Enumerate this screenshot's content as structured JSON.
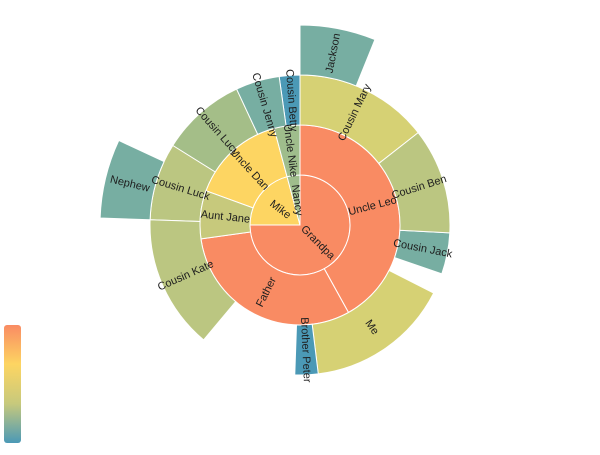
{
  "chart_data": {
    "type": "sunburst",
    "title": "",
    "colors": {
      "Grandpa": "#f98b63",
      "Mike": "#fdd562",
      "Nancy": "#9fbd8c",
      "Uncle Leo": "#f98b63",
      "Father": "#f98b63",
      "Uncle Dan": "#fdd562",
      "Aunt Jane": "#c7c97c",
      "Uncle Nike": "#9fbd8c",
      "Cousin Mary": "#d6d174",
      "Cousin Ben": "#bbc681",
      "Cousin Jack": "#77aea2",
      "Me": "#d6d174",
      "Brother Peter": "#4b99b6",
      "Cousin Lucy": "#a4be88",
      "Cousin Luck": "#bbc681",
      "Cousin Kate": "#bbc681",
      "Cousin Jenny": "#77aea2",
      "Cousin Betty": "#4b99b6",
      "Jackson": "#77aea2",
      "Nephew": "#77aea2"
    },
    "legend": {
      "type": "visual-map",
      "placement": "bottom-left",
      "colors": [
        "#4b99b6",
        "#c7c97c",
        "#fdd562",
        "#f98b63"
      ]
    },
    "nodes": [
      {
        "name": "Grandpa",
        "children": [
          {
            "name": "Uncle Leo",
            "value": 15,
            "children": [
              {
                "name": "Cousin Jack",
                "value": 2
              },
              {
                "name": "Cousin Mary",
                "value": 5,
                "children": [
                  {
                    "name": "Jackson",
                    "value": 2
                  }
                ]
              },
              {
                "name": "Cousin Ben",
                "value": 4
              }
            ]
          },
          {
            "name": "Father",
            "value": 10,
            "children": [
              {
                "name": "Me",
                "value": 5
              },
              {
                "name": "Brother Peter",
                "value": 1
              }
            ]
          }
        ]
      },
      {
        "name": "Mike",
        "children": [
          {
            "name": "Uncle Dan",
            "children": [
              {
                "name": "Cousin Lucy",
                "value": 3
              },
              {
                "name": "Cousin Luck",
                "value": 4,
                "children": [
                  {
                    "name": "Nephew",
                    "value": 2
                  }
                ]
              }
            ]
          }
        ]
      },
      {
        "name": "Nancy",
        "children": [
          {
            "name": "Uncle Nike",
            "children": [
              {
                "name": "Cousin Betty",
                "value": 1
              },
              {
                "name": "Cousin Jenny",
                "value": 2
              }
            ]
          }
        ]
      },
      {
        "name": "Aunt Jane",
        "parent": "Mike",
        "children": [
          {
            "name": "Cousin Kate",
            "value": 4
          }
        ]
      }
    ]
  }
}
